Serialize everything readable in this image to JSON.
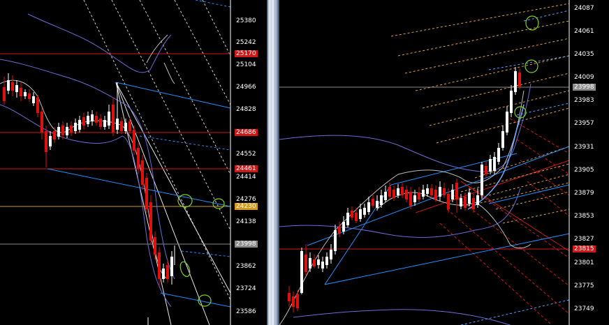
{
  "left_chart": {
    "price_axis": [
      "25380",
      "25242",
      "25104",
      "24966",
      "24828",
      "24552",
      "24414",
      "24276",
      "24138",
      "23862",
      "23724",
      "23586"
    ],
    "tags": [
      {
        "label": "25170",
        "color": "#d01818"
      },
      {
        "label": "24686",
        "color": "#d01818"
      },
      {
        "label": "24461",
        "color": "#d01818"
      },
      {
        "label": "24230",
        "color": "#d49a18"
      },
      {
        "label": "23998",
        "color": "#8a8a8a"
      }
    ]
  },
  "right_chart": {
    "price_axis": [
      "24087",
      "24061",
      "24035",
      "24009",
      "23983",
      "23957",
      "23931",
      "23905",
      "23879",
      "23853",
      "23827",
      "23801",
      "23775",
      "23749"
    ],
    "tags": [
      {
        "label": "23998",
        "color": "#8a8a8a"
      },
      {
        "label": "23815",
        "color": "#d01818"
      }
    ]
  },
  "colors": {
    "background": "#000000",
    "bull_candle": "#ffffff",
    "bear_candle": "#e01010",
    "band": "#6b6bd6",
    "channel": "#1e90ff",
    "fan": "#d8c08a",
    "level_red": "#d01818",
    "level_orange": "#d49a18",
    "marker": "#7ed321"
  }
}
